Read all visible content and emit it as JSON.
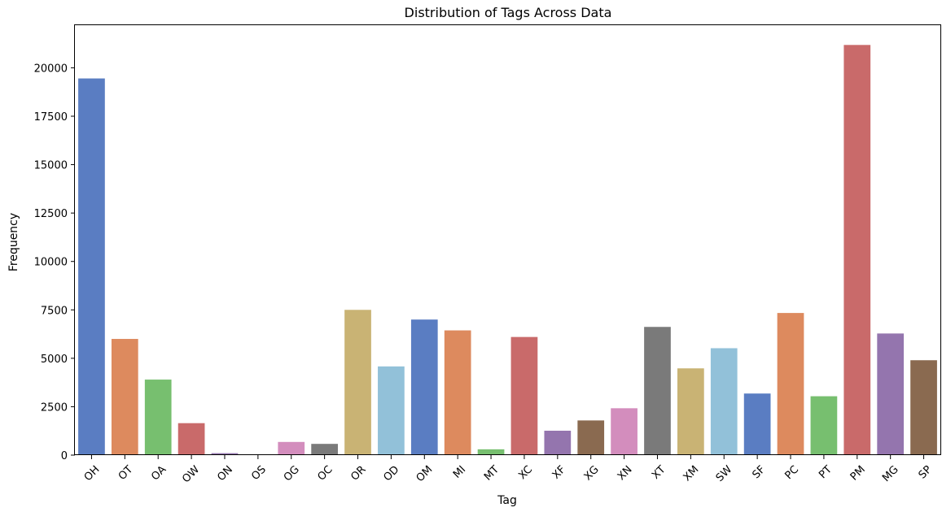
{
  "chart_data": {
    "type": "bar",
    "title": "Distribution of Tags Across Data",
    "xlabel": "Tag",
    "ylabel": "Frequency",
    "categories": [
      "OH",
      "OT",
      "OA",
      "OW",
      "ON",
      "OS",
      "OG",
      "OC",
      "OR",
      "OD",
      "OM",
      "MI",
      "MT",
      "XC",
      "XF",
      "XG",
      "XN",
      "XT",
      "XM",
      "SW",
      "SF",
      "PC",
      "PT",
      "PM",
      "MG",
      "SP"
    ],
    "values": [
      19450,
      6000,
      3900,
      1650,
      100,
      10,
      680,
      580,
      7500,
      4580,
      7000,
      6440,
      300,
      6100,
      1260,
      1790,
      2420,
      6620,
      4480,
      5520,
      3180,
      7340,
      3040,
      21180,
      6280,
      4900
    ],
    "colors": [
      "#5a7dc2",
      "#dd8a5e",
      "#77bf6f",
      "#c96a6a",
      "#9475ae",
      "#8a6a50",
      "#d38dbd",
      "#7a7a7a",
      "#c9b374",
      "#92c1d9",
      "#5a7dc2",
      "#dd8a5e",
      "#77bf6f",
      "#c96a6a",
      "#9475ae",
      "#8a6a50",
      "#d38dbd",
      "#7a7a7a",
      "#c9b374",
      "#92c1d9",
      "#5a7dc2",
      "#dd8a5e",
      "#77bf6f",
      "#c96a6a",
      "#9475ae",
      "#8a6a50"
    ],
    "yticks": [
      0,
      2500,
      5000,
      7500,
      10000,
      12500,
      15000,
      17500,
      20000
    ],
    "ylim": [
      0,
      22200
    ],
    "grid": false,
    "legend": "none"
  }
}
